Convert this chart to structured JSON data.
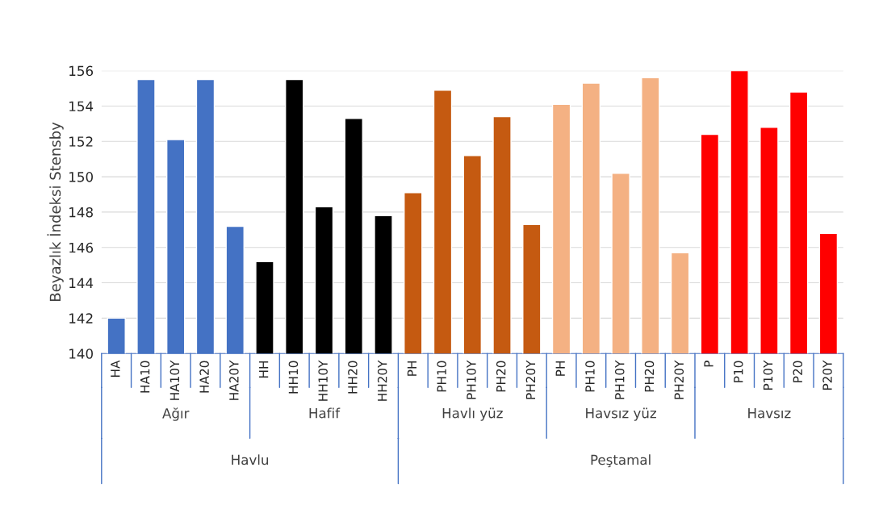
{
  "chart_data": {
    "type": "bar",
    "ylabel": "Beyazlık İndeksi Stensby",
    "categories": [
      "HA",
      "HA10",
      "HA10Y",
      "HA20",
      "HA20Y",
      "HH",
      "HH10",
      "HH10Y",
      "HH20",
      "HH20Y",
      "PH",
      "PH10",
      "PH10Y",
      "PH20",
      "PH20Y",
      "PH",
      "PH10",
      "PH10Y",
      "PH20",
      "PH20Y",
      "P",
      "P10",
      "P10Y",
      "P20",
      "P20Y"
    ],
    "values": [
      142.0,
      155.5,
      152.1,
      155.5,
      147.2,
      145.2,
      155.5,
      148.3,
      153.3,
      147.8,
      149.1,
      154.9,
      151.2,
      153.4,
      147.3,
      154.1,
      155.3,
      150.2,
      155.6,
      145.7,
      152.4,
      156.0,
      152.8,
      154.8,
      146.8
    ],
    "colors": [
      "#4472c4",
      "#4472c4",
      "#4472c4",
      "#4472c4",
      "#4472c4",
      "#000000",
      "#000000",
      "#000000",
      "#000000",
      "#000000",
      "#c55a11",
      "#c55a11",
      "#c55a11",
      "#c55a11",
      "#c55a11",
      "#f4b183",
      "#f4b183",
      "#f4b183",
      "#f4b183",
      "#f4b183",
      "#ff0000",
      "#ff0000",
      "#ff0000",
      "#ff0000",
      "#ff0000"
    ],
    "ylim": [
      140,
      156
    ],
    "yticks": [
      140,
      142,
      144,
      146,
      148,
      150,
      152,
      154,
      156
    ],
    "grid": "y",
    "annotations": [
      "Ağır",
      "Hafif",
      "Havlı yüz",
      "Havsız yüz",
      "Havsız",
      "Havlu",
      "Peştamal"
    ]
  }
}
